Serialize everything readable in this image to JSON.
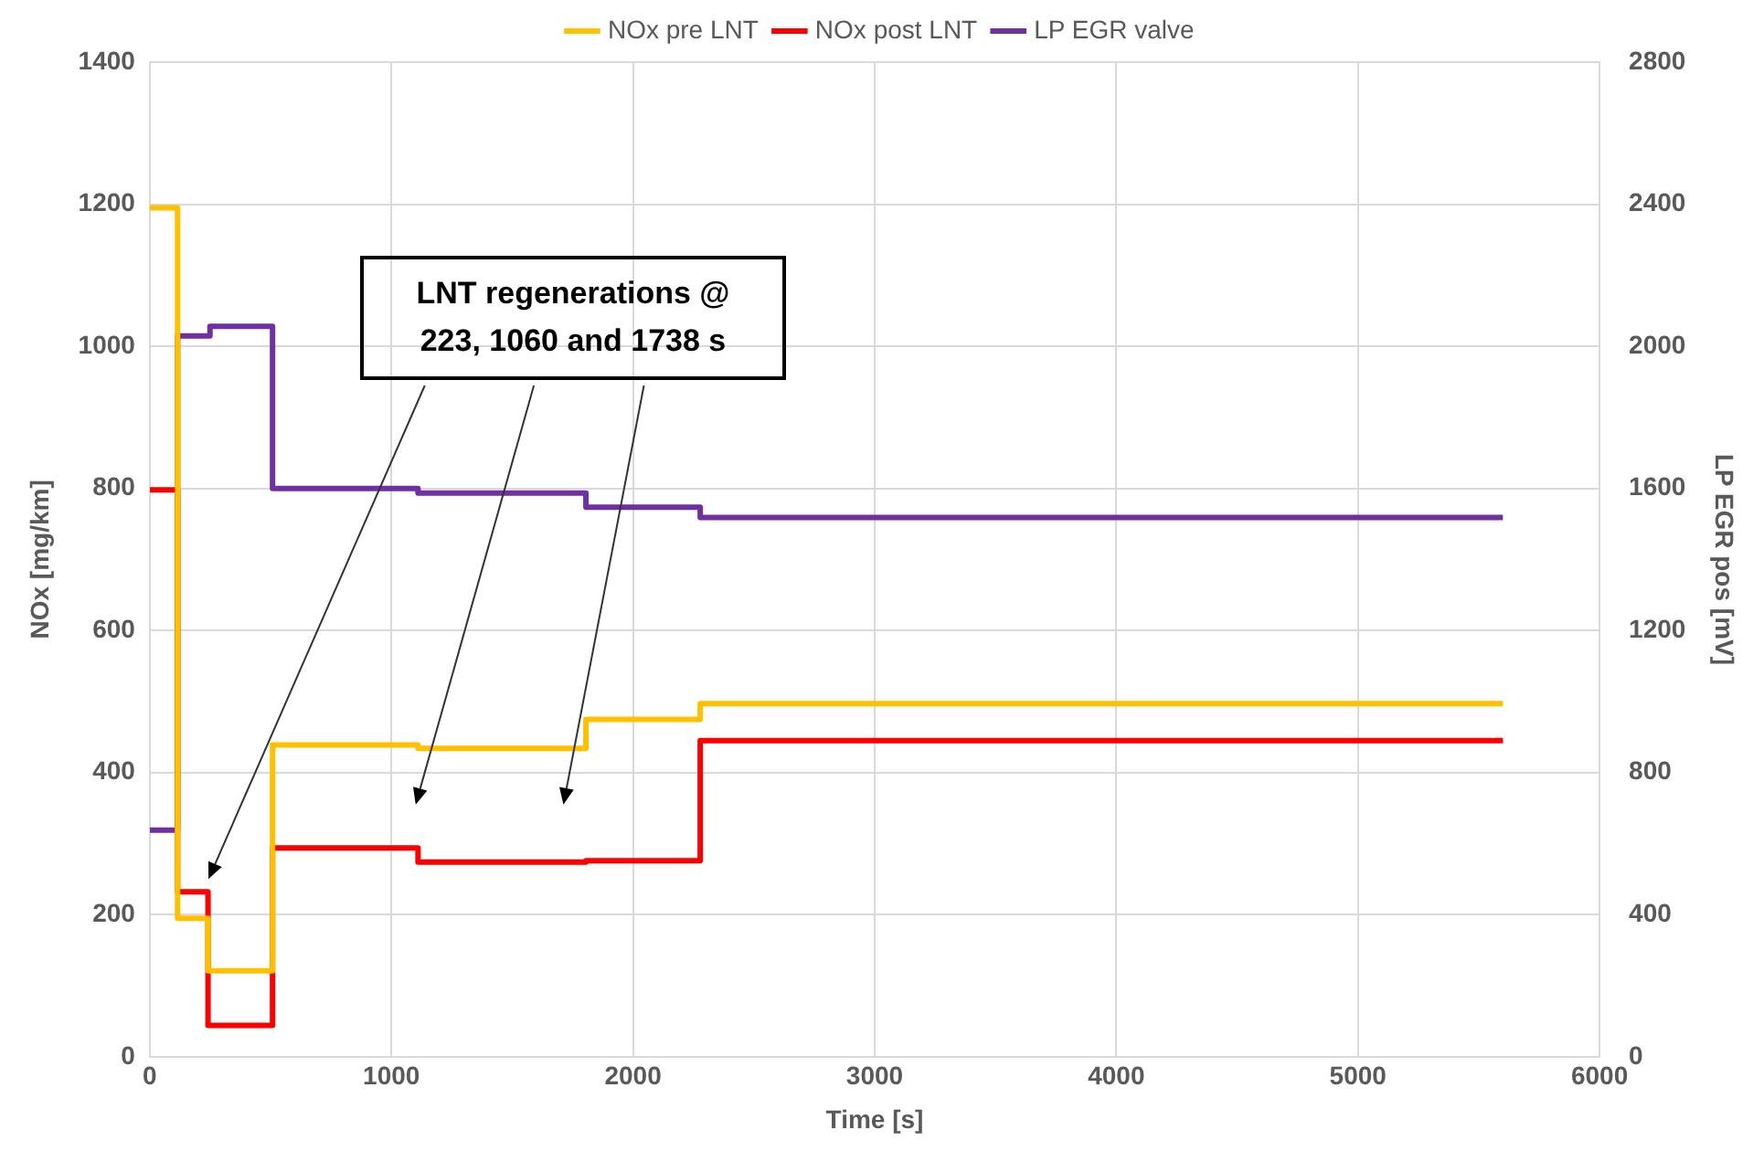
{
  "chart_data": {
    "type": "step",
    "xlabel": "Time [s]",
    "ylabel": "NOx [mg/km]",
    "y2label": "LP EGR pos [mV]",
    "x": [
      0,
      115,
      241,
      508,
      1110,
      1805,
      2278,
      5600
    ],
    "series": [
      {
        "name": "NOx pre LNT",
        "color": "#ffc000",
        "values": [
          1195,
          195,
          121,
          439,
          434,
          475,
          497,
          497
        ]
      },
      {
        "name": "NOx post LNT",
        "color": "#ff0000",
        "values": [
          798,
          232,
          44,
          294,
          274,
          276,
          445,
          445
        ]
      },
      {
        "name": "LP EGR valve",
        "color": "#7030a0",
        "axis": "y2",
        "x": [
          0,
          115,
          249,
          508,
          1110,
          1805,
          2278,
          5600
        ],
        "values": [
          638,
          2029,
          2056,
          1600,
          1587,
          1547,
          1518,
          1518
        ]
      }
    ],
    "xlim": [
      0,
      6000
    ],
    "xticks": [
      0,
      1000,
      2000,
      3000,
      4000,
      5000,
      6000
    ],
    "ylim": [
      0,
      1400
    ],
    "yticks": [
      0,
      200,
      400,
      600,
      800,
      1000,
      1200,
      1400
    ],
    "y2lim": [
      0,
      2800
    ],
    "y2ticks": [
      0,
      400,
      800,
      1200,
      1600,
      2000,
      2400,
      2800
    ],
    "annotations": [
      "LNT regenerations @ 223, 1060 and 1738 s"
    ],
    "grid": true,
    "legend": "top",
    "marker": "none",
    "line_style": "solid"
  }
}
